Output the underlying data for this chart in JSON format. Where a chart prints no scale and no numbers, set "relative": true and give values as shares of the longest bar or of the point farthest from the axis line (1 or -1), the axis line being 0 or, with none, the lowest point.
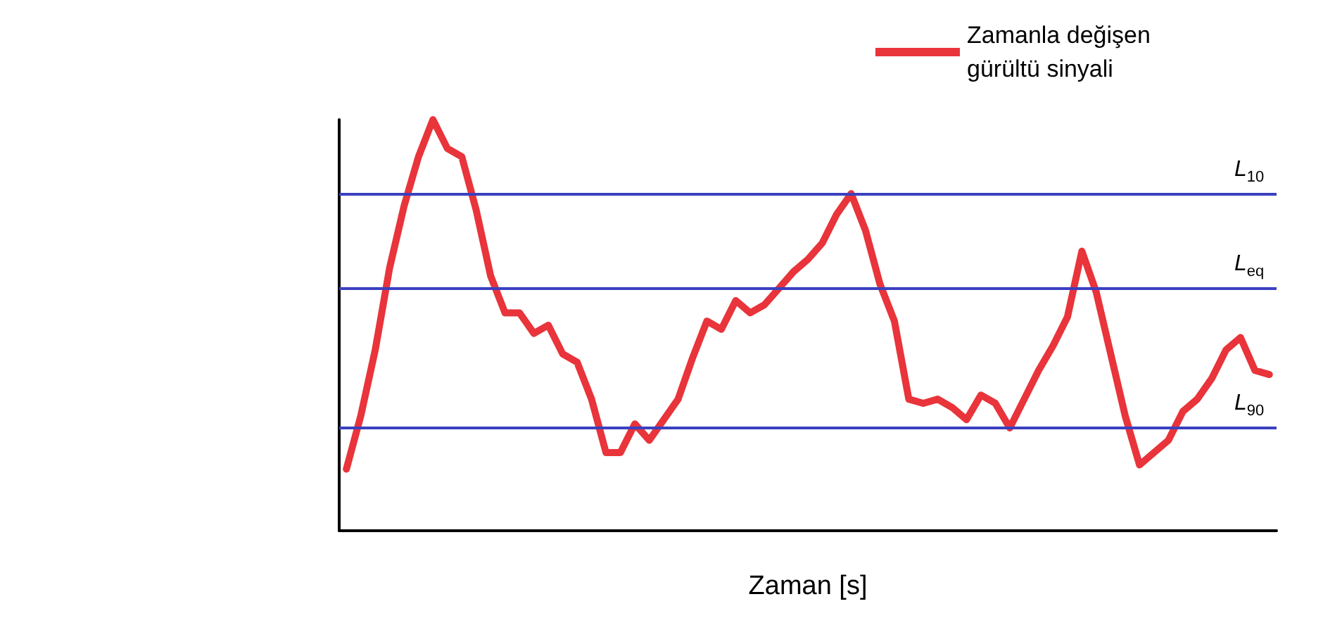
{
  "chart_data": {
    "type": "line",
    "relative": true,
    "xlabel": "Zaman [s]",
    "legend": "top right",
    "grid": false,
    "marker": "none",
    "line_style": "solid",
    "categories": [
      null,
      null,
      null,
      null,
      null,
      null,
      null,
      null,
      null,
      null,
      null,
      null,
      null,
      null,
      null,
      null,
      null,
      null,
      null,
      null,
      null,
      null,
      null,
      null,
      null,
      null,
      null,
      null,
      null,
      null,
      null,
      null,
      null,
      null,
      null,
      null,
      null,
      null,
      null,
      null,
      null,
      null,
      null,
      null,
      null,
      null,
      null,
      null,
      null,
      null,
      null,
      null,
      null,
      null,
      null,
      null,
      null,
      null,
      null,
      null,
      null,
      null,
      null,
      null,
      null
    ],
    "series": [
      {
        "name": "Zamanla değişen gürültü sinyali",
        "color": "#e8343a",
        "values": [
          0.15,
          0.28,
          0.44,
          0.64,
          0.79,
          0.91,
          1,
          0.93,
          0.91,
          0.78,
          0.62,
          0.53,
          0.53,
          0.48,
          0.5,
          0.43,
          0.41,
          0.32,
          0.19,
          0.19,
          0.26,
          0.22,
          0.27,
          0.32,
          0.42,
          0.51,
          0.49,
          0.56,
          0.53,
          0.55,
          0.59,
          0.63,
          0.66,
          0.7,
          0.77,
          0.82,
          0.73,
          0.6,
          0.51,
          0.32,
          0.31,
          0.32,
          0.3,
          0.27,
          0.33,
          0.31,
          0.25,
          0.32,
          0.39,
          0.45,
          0.52,
          0.68,
          0.58,
          0.43,
          0.28,
          0.16,
          0.19,
          0.22,
          0.29,
          0.32,
          0.37,
          0.44,
          0.47,
          0.39,
          0.38
        ]
      }
    ],
    "ref_lines": [
      {
        "axis": "y",
        "value": 0.82,
        "label": "L$_{10}$",
        "color": "#3b40c0"
      },
      {
        "axis": "y",
        "value": 0.59,
        "label": "L$_{eq}$",
        "color": "#3b40c0"
      },
      {
        "axis": "y",
        "value": 0.25,
        "label": "L$_{90}$",
        "color": "#3b40c0"
      }
    ]
  }
}
